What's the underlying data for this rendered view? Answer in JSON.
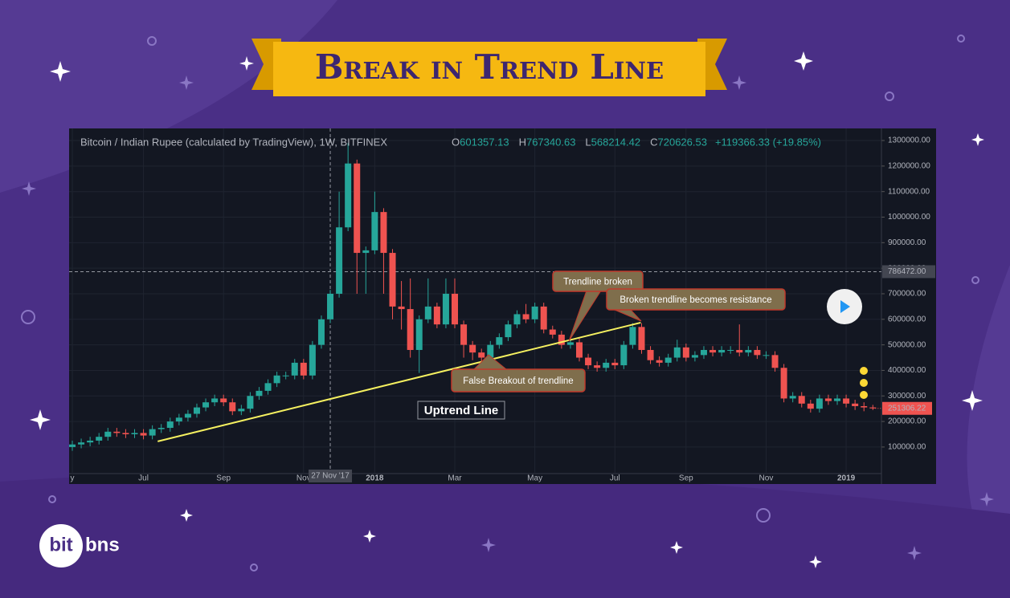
{
  "header": {
    "title": "Break in Trend Line"
  },
  "logo": [
    "bit",
    "bns"
  ],
  "chart_data": {
    "type": "candlestick",
    "title": "Bitcoin / Indian Rupee (calculated by TradingView), 1W, BITFINEX",
    "ohlc_legend": [
      {
        "label": "O",
        "value": "601357.13"
      },
      {
        "label": "H",
        "value": "767340.63"
      },
      {
        "label": "L",
        "value": "568214.42"
      },
      {
        "label": "C",
        "value": "720626.53"
      }
    ],
    "change": "+119366.33 (+19.85%)",
    "categories": [
      "y",
      null,
      null,
      null,
      null,
      null,
      null,
      null,
      "Jul",
      null,
      null,
      null,
      null,
      null,
      null,
      null,
      null,
      "Sep",
      null,
      null,
      null,
      null,
      null,
      null,
      null,
      null,
      "Nov",
      null,
      null,
      null,
      null,
      null,
      null,
      null,
      "2018",
      null,
      null,
      null,
      null,
      null,
      null,
      null,
      null,
      "Mar",
      null,
      null,
      null,
      null,
      null,
      null,
      null,
      null,
      "May",
      null,
      null,
      null,
      null,
      null,
      null,
      null,
      null,
      "Jul",
      null,
      null,
      null,
      null,
      null,
      null,
      null,
      "Sep",
      null,
      null,
      null,
      null,
      null,
      null,
      null,
      null,
      "Nov",
      null,
      null,
      null,
      null,
      null,
      null,
      null,
      null,
      "2019",
      null,
      null,
      null
    ],
    "open": [
      100000,
      110000,
      118000,
      125000,
      140000,
      160000,
      155000,
      150000,
      155000,
      145000,
      170000,
      175000,
      200000,
      215000,
      230000,
      255000,
      275000,
      290000,
      275000,
      240000,
      250000,
      300000,
      320000,
      350000,
      380000,
      380000,
      430000,
      380000,
      500000,
      600000,
      700000,
      960000,
      1210000,
      860000,
      870000,
      1020000,
      860000,
      650000,
      640000,
      480000,
      600000,
      650000,
      580000,
      700000,
      580000,
      500000,
      470000,
      450000,
      500000,
      530000,
      580000,
      620000,
      600000,
      650000,
      560000,
      540000,
      500000,
      510000,
      450000,
      420000,
      410000,
      430000,
      420000,
      500000,
      570000,
      480000,
      440000,
      430000,
      450000,
      490000,
      450000,
      460000,
      480000,
      470000,
      480000,
      480000,
      470000,
      480000,
      460000,
      460000,
      410000,
      290000,
      300000,
      270000,
      250000,
      290000,
      280000,
      290000,
      270000,
      260000,
      255000
    ],
    "high": [
      125000,
      133000,
      140000,
      155000,
      175000,
      175000,
      170000,
      170000,
      170000,
      185000,
      190000,
      215000,
      230000,
      245000,
      270000,
      290000,
      305000,
      305000,
      290000,
      265000,
      315000,
      335000,
      365000,
      395000,
      395000,
      445000,
      445000,
      515000,
      615000,
      715000,
      1100000,
      1290000,
      1225000,
      885000,
      1100000,
      1035000,
      875000,
      750000,
      760000,
      615000,
      760000,
      665000,
      760000,
      760000,
      595000,
      515000,
      485000,
      515000,
      545000,
      595000,
      635000,
      660000,
      665000,
      665000,
      575000,
      555000,
      525000,
      525000,
      465000,
      435000,
      445000,
      445000,
      515000,
      585000,
      585000,
      495000,
      455000,
      465000,
      520000,
      505000,
      475000,
      495000,
      495000,
      495000,
      495000,
      580000,
      495000,
      495000,
      475000,
      475000,
      425000,
      315000,
      315000,
      285000,
      305000,
      305000,
      305000,
      305000,
      285000,
      275000,
      265000
    ],
    "low": [
      85000,
      95000,
      103000,
      110000,
      125000,
      140000,
      135000,
      135000,
      130000,
      130000,
      155000,
      160000,
      185000,
      200000,
      215000,
      240000,
      260000,
      260000,
      225000,
      225000,
      235000,
      285000,
      305000,
      335000,
      365000,
      365000,
      365000,
      365000,
      485000,
      585000,
      685000,
      945000,
      700000,
      700000,
      855000,
      700000,
      600000,
      560000,
      450000,
      390000,
      585000,
      565000,
      565000,
      565000,
      450000,
      440000,
      420000,
      435000,
      485000,
      515000,
      565000,
      585000,
      585000,
      545000,
      525000,
      485000,
      485000,
      435000,
      405000,
      395000,
      395000,
      405000,
      405000,
      485000,
      465000,
      425000,
      415000,
      415000,
      435000,
      435000,
      435000,
      445000,
      455000,
      455000,
      465000,
      455000,
      455000,
      445000,
      445000,
      395000,
      275000,
      275000,
      255000,
      235000,
      235000,
      265000,
      265000,
      255000,
      245000,
      240000,
      245000
    ],
    "close": [
      110000,
      118000,
      125000,
      140000,
      160000,
      155000,
      150000,
      155000,
      145000,
      170000,
      175000,
      200000,
      215000,
      230000,
      255000,
      275000,
      290000,
      275000,
      240000,
      250000,
      300000,
      320000,
      350000,
      380000,
      380000,
      430000,
      380000,
      500000,
      600000,
      700000,
      960000,
      1210000,
      860000,
      870000,
      1020000,
      860000,
      650000,
      640000,
      480000,
      600000,
      650000,
      580000,
      700000,
      580000,
      500000,
      470000,
      450000,
      500000,
      530000,
      580000,
      620000,
      600000,
      650000,
      560000,
      540000,
      500000,
      510000,
      450000,
      420000,
      410000,
      430000,
      420000,
      500000,
      570000,
      480000,
      440000,
      430000,
      450000,
      490000,
      450000,
      460000,
      480000,
      470000,
      480000,
      480000,
      470000,
      480000,
      460000,
      460000,
      410000,
      290000,
      300000,
      270000,
      250000,
      290000,
      280000,
      290000,
      270000,
      260000,
      255000,
      251306.22
    ],
    "last_value_label": "251306.22",
    "up_color": "#26a69a",
    "down_color": "#ef5350",
    "ylim": [
      -4000,
      1341000
    ],
    "yticks": [
      {
        "value": 100000,
        "label": "100000.00"
      },
      {
        "value": 200000,
        "label": "200000.00"
      },
      {
        "value": 300000,
        "label": "300000.00"
      },
      {
        "value": 400000,
        "label": "400000.00"
      },
      {
        "value": 500000,
        "label": "500000.00"
      },
      {
        "value": 600000,
        "label": "600000.00"
      },
      {
        "value": 700000,
        "label": "700000.00"
      },
      {
        "value": 800000,
        "label": "800000.00"
      },
      {
        "value": 900000,
        "label": "900000.00"
      },
      {
        "value": 1000000,
        "label": "1000000.00"
      },
      {
        "value": 1100000,
        "label": "1100000.00"
      },
      {
        "value": 1200000,
        "label": "1200000.00"
      },
      {
        "value": 1300000,
        "label": "1300000.00"
      }
    ],
    "grid": true,
    "crosshair_price": {
      "value": 786472,
      "label": "786472.00"
    },
    "crosshair_date": "27 Nov '17",
    "trendline": {
      "x": [
        9.6,
        63.9
      ],
      "y": [
        122000,
        587000
      ]
    },
    "annotations": [
      "Trendline broken",
      "Broken trendline becomes resistance",
      "False Breakout of trendline",
      "Uptrend Line"
    ]
  }
}
